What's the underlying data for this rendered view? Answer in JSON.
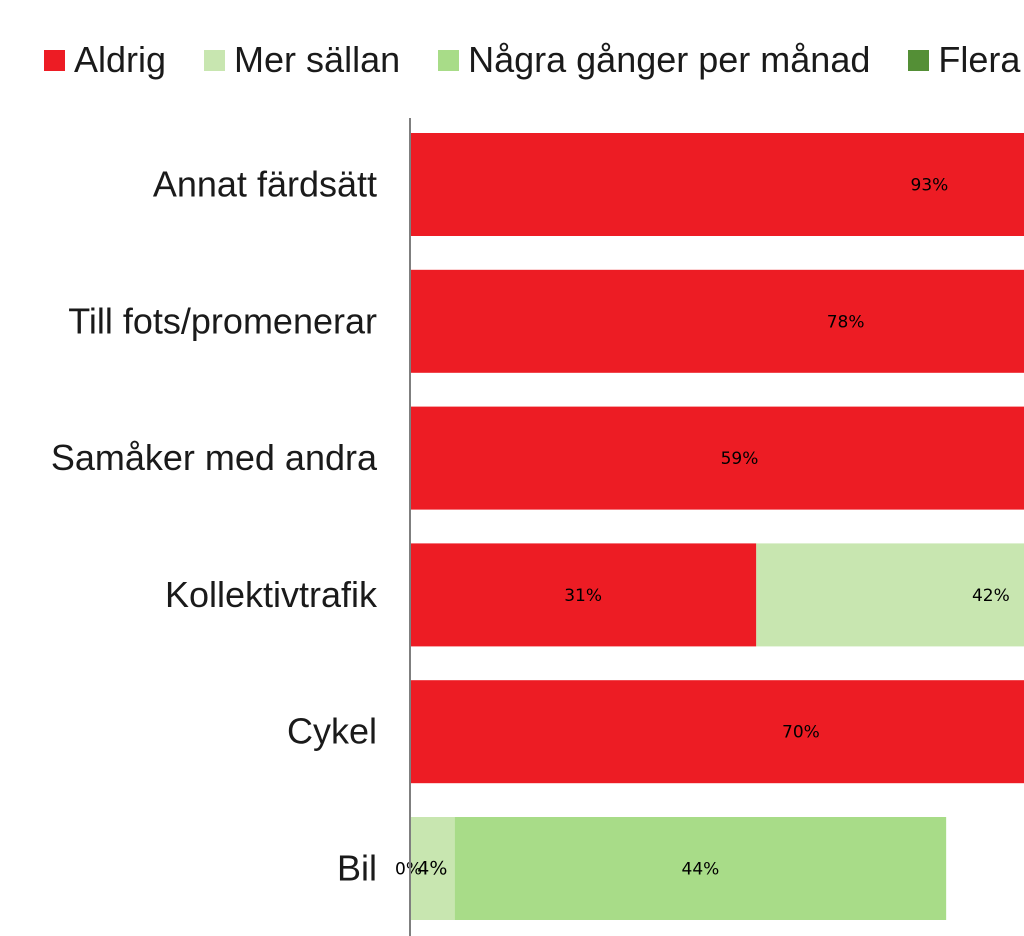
{
  "chart_data": {
    "type": "bar",
    "orientation": "horizontal",
    "stacked": true,
    "legend_position": "top",
    "grid": false,
    "categories": [
      "Annat färdsätt",
      "Till fots/promenerar",
      "Samåker med andra",
      "Kollektivtrafik",
      "Cykel",
      "Bil"
    ],
    "series": [
      {
        "name": "Aldrig",
        "color": "#ed1c24",
        "values": [
          93,
          78,
          59,
          31,
          70,
          0
        ]
      },
      {
        "name": "Mer sällan",
        "color": "#c8e6b0",
        "values": [
          null,
          null,
          null,
          42,
          null,
          4
        ]
      },
      {
        "name": "Några gånger per månad",
        "color": "#a8dc88",
        "values": [
          null,
          null,
          null,
          null,
          null,
          44
        ]
      },
      {
        "name": "Flera g",
        "color": "#548f36",
        "values": [
          null,
          null,
          null,
          null,
          null,
          null
        ]
      }
    ],
    "data_labels": [
      {
        "category": "Annat färdsätt",
        "series": "Aldrig",
        "text": "93%"
      },
      {
        "category": "Till fots/promenerar",
        "series": "Aldrig",
        "text": "78%"
      },
      {
        "category": "Samåker med andra",
        "series": "Aldrig",
        "text": "59%"
      },
      {
        "category": "Kollektivtrafik",
        "series": "Aldrig",
        "text": "31%"
      },
      {
        "category": "Kollektivtrafik",
        "series": "Mer sällan",
        "text": "42%"
      },
      {
        "category": "Cykel",
        "series": "Aldrig",
        "text": "70%"
      },
      {
        "category": "Bil",
        "series": "Aldrig",
        "text": "0%"
      },
      {
        "category": "Bil",
        "series": "Mer sällan",
        "text": "4%"
      },
      {
        "category": "Bil",
        "series": "Några gånger per månad",
        "text": "44%"
      }
    ],
    "xlim": [
      0,
      100
    ]
  }
}
